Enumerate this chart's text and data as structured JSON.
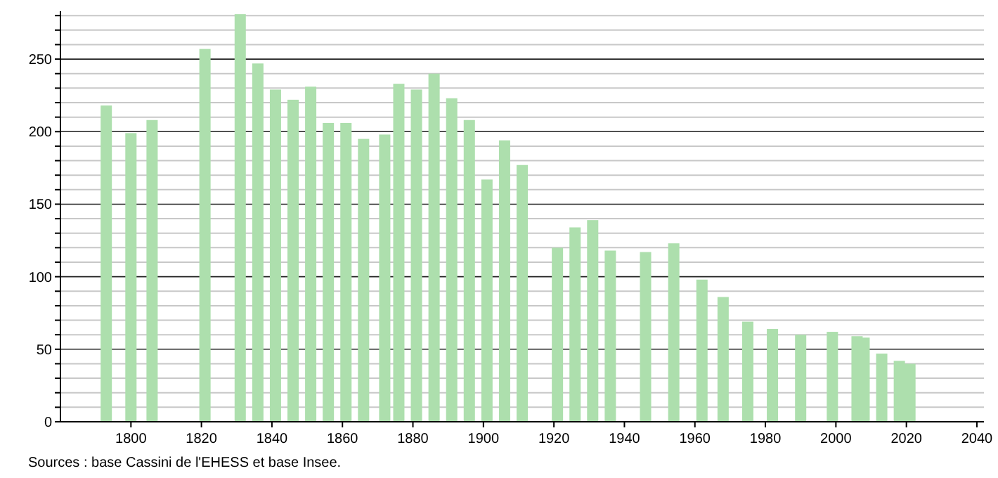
{
  "chart_data": {
    "type": "bar",
    "x": [
      1793,
      1800,
      1806,
      1821,
      1831,
      1836,
      1841,
      1846,
      1851,
      1856,
      1861,
      1866,
      1872,
      1876,
      1881,
      1886,
      1891,
      1896,
      1901,
      1906,
      1911,
      1921,
      1926,
      1931,
      1936,
      1946,
      1954,
      1962,
      1968,
      1975,
      1982,
      1990,
      1999,
      2006,
      2008,
      2013,
      2018,
      2021
    ],
    "values": [
      218,
      199,
      208,
      257,
      281,
      247,
      229,
      222,
      231,
      206,
      206,
      195,
      198,
      233,
      229,
      240,
      223,
      208,
      167,
      194,
      177,
      120,
      134,
      139,
      118,
      117,
      123,
      98,
      86,
      69,
      64,
      60,
      62,
      59,
      58,
      47,
      42,
      40
    ],
    "color": "#addfad",
    "xlim": [
      1780,
      2042
    ],
    "xticks": [
      1800,
      1820,
      1840,
      1860,
      1880,
      1900,
      1920,
      1940,
      1960,
      1980,
      2000,
      2020,
      2040
    ],
    "ylim": [
      0,
      283
    ],
    "yticks": [
      0,
      {
        "value": 10,
        "label": null
      },
      {
        "value": 20,
        "label": null
      },
      {
        "value": 30,
        "label": null
      },
      {
        "value": 40,
        "label": null
      },
      50,
      {
        "value": 60,
        "label": null
      },
      {
        "value": 70,
        "label": null
      },
      {
        "value": 80,
        "label": null
      },
      {
        "value": 90,
        "label": null
      },
      100,
      {
        "value": 110,
        "label": null
      },
      {
        "value": 120,
        "label": null
      },
      {
        "value": 130,
        "label": null
      },
      {
        "value": 140,
        "label": null
      },
      150,
      {
        "value": 160,
        "label": null
      },
      {
        "value": 170,
        "label": null
      },
      {
        "value": 180,
        "label": null
      },
      {
        "value": 190,
        "label": null
      },
      200,
      {
        "value": 210,
        "label": null
      },
      {
        "value": 220,
        "label": null
      },
      {
        "value": 230,
        "label": null
      },
      {
        "value": 240,
        "label": null
      },
      250,
      {
        "value": 260,
        "label": null
      },
      {
        "value": 270,
        "label": null
      },
      {
        "value": 280,
        "label": null
      }
    ],
    "grid": true,
    "annotations": [
      "Sources : base Cassini de l'EHESS et base Insee."
    ]
  }
}
